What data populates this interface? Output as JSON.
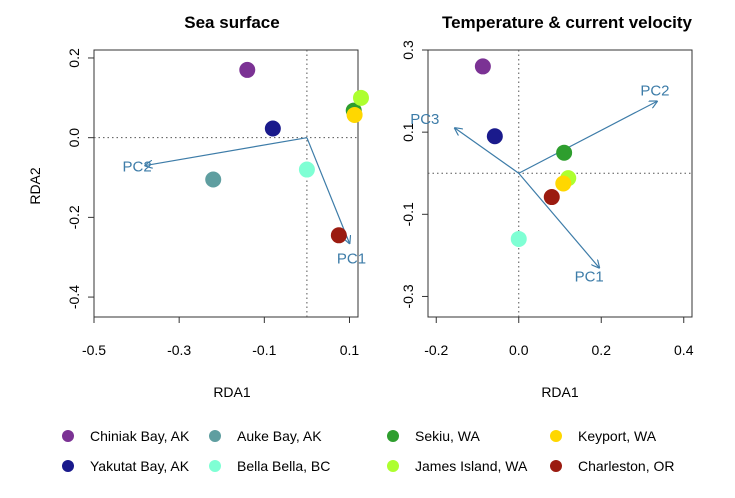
{
  "chart_data": [
    {
      "type": "scatter",
      "title": "Sea surface",
      "xlabel": "RDA1",
      "ylabel": "RDA2",
      "xlim": [
        -0.5,
        0.12
      ],
      "ylim": [
        -0.45,
        0.22
      ],
      "xticks": [
        -0.5,
        -0.3,
        -0.1,
        0.1
      ],
      "xtick_labels": [
        "-0.5",
        "-0.3",
        "-0.1",
        "0.1"
      ],
      "yticks": [
        -0.4,
        -0.2,
        0.0,
        0.2
      ],
      "ytick_labels": [
        "-0.4",
        "-0.2",
        "0.0",
        "0.2"
      ],
      "ref_lines": {
        "x": 0,
        "y": 0
      },
      "points": [
        {
          "site": "Chiniak Bay, AK",
          "x": -0.14,
          "y": 0.17
        },
        {
          "site": "Yakutat Bay, AK",
          "x": -0.08,
          "y": 0.023
        },
        {
          "site": "Auke Bay, AK",
          "x": -0.22,
          "y": -0.105
        },
        {
          "site": "Bella Bella, BC",
          "x": 0.0,
          "y": -0.08
        },
        {
          "site": "Sekiu, WA",
          "x": 0.11,
          "y": 0.068
        },
        {
          "site": "James Island, WA",
          "x": 0.127,
          "y": 0.1
        },
        {
          "site": "Keyport, WA",
          "x": 0.112,
          "y": 0.057
        },
        {
          "site": "Charleston, OR",
          "x": 0.075,
          "y": -0.245
        }
      ],
      "arrows": [
        {
          "label": "PC1",
          "x": 0.1,
          "y": -0.265
        },
        {
          "label": "PC2",
          "x": -0.38,
          "y": -0.07
        }
      ]
    },
    {
      "type": "scatter",
      "title": "Temperature & current velocity",
      "xlabel": "RDA1",
      "ylabel": "",
      "xlim": [
        -0.22,
        0.42
      ],
      "ylim": [
        -0.35,
        0.3
      ],
      "xticks": [
        -0.2,
        0.0,
        0.2,
        0.4
      ],
      "xtick_labels": [
        "-0.2",
        "0.0",
        "0.2",
        "0.4"
      ],
      "yticks": [
        -0.3,
        -0.1,
        0.1,
        0.3
      ],
      "ytick_labels": [
        "-0.3",
        "-0.1",
        "0.1",
        "0.3"
      ],
      "ref_lines": {
        "x": 0,
        "y": 0
      },
      "points": [
        {
          "site": "Chiniak Bay, AK",
          "x": -0.087,
          "y": 0.26
        },
        {
          "site": "Yakutat Bay, AK",
          "x": -0.058,
          "y": 0.09
        },
        {
          "site": "Bella Bella, BC",
          "x": 0.0,
          "y": -0.16
        },
        {
          "site": "Sekiu, WA",
          "x": 0.11,
          "y": 0.05
        },
        {
          "site": "James Island, WA",
          "x": 0.12,
          "y": -0.012
        },
        {
          "site": "Keyport, WA",
          "x": 0.108,
          "y": -0.025
        },
        {
          "site": "Charleston, OR",
          "x": 0.08,
          "y": -0.058
        }
      ],
      "arrows": [
        {
          "label": "PC1",
          "x": 0.195,
          "y": -0.23
        },
        {
          "label": "PC2",
          "x": 0.335,
          "y": 0.175
        },
        {
          "label": "PC3",
          "x": -0.155,
          "y": 0.11
        }
      ]
    }
  ],
  "legend": {
    "placement": "bottom",
    "items": [
      {
        "label": "Chiniak Bay, AK",
        "color": "#7b3294"
      },
      {
        "label": "Yakutat Bay, AK",
        "color": "#1a1a8c"
      },
      {
        "label": "Auke Bay, AK",
        "color": "#5f9ea0"
      },
      {
        "label": "Bella Bella, BC",
        "color": "#7fffd4"
      },
      {
        "label": "Sekiu, WA",
        "color": "#2e9e2e"
      },
      {
        "label": "James Island, WA",
        "color": "#adff2f"
      },
      {
        "label": "Keyport, WA",
        "color": "#ffd700"
      },
      {
        "label": "Charleston, OR",
        "color": "#9b1b10"
      }
    ]
  },
  "colors": {
    "arrow": "#3d7ca8",
    "axis": "#333333",
    "refline": "#555555"
  }
}
